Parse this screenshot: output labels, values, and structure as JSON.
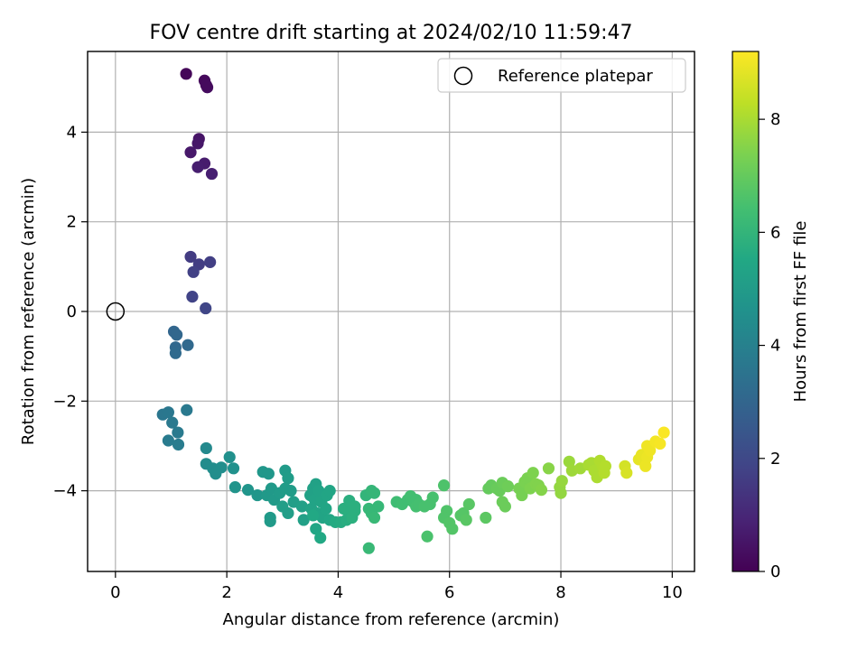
{
  "chart_data": {
    "type": "scatter",
    "title": "FOV centre drift starting at 2024/02/10 11:59:47",
    "xlabel": "Angular distance from reference (arcmin)",
    "ylabel": "Rotation from reference (arcmin)",
    "xlim": [
      -0.5,
      10.4
    ],
    "ylim": [
      -5.8,
      5.8
    ],
    "xticks": [
      "0",
      "2",
      "4",
      "6",
      "8",
      "10"
    ],
    "yticks": [
      "−4",
      "−2",
      "0",
      "2",
      "4"
    ],
    "grid": true,
    "legend": {
      "position": "top-right",
      "label": "Reference platepar"
    },
    "reference_point": {
      "x": 0,
      "y": 0
    },
    "colorbar": {
      "label": "Hours from first FF file",
      "range": [
        0,
        9.2
      ],
      "ticks": [
        "0",
        "2",
        "4",
        "6",
        "8"
      ],
      "colormap": "viridis"
    },
    "points": [
      [
        1.27,
        5.3,
        0.15
      ],
      [
        1.6,
        5.15,
        0.2
      ],
      [
        1.65,
        5.0,
        0.3
      ],
      [
        1.63,
        5.05,
        0.25
      ],
      [
        1.5,
        3.85,
        0.5
      ],
      [
        1.48,
        3.75,
        0.55
      ],
      [
        1.35,
        3.55,
        0.6
      ],
      [
        1.6,
        3.3,
        0.7
      ],
      [
        1.48,
        3.22,
        0.75
      ],
      [
        1.73,
        3.07,
        0.8
      ],
      [
        1.35,
        1.22,
        1.6
      ],
      [
        1.5,
        1.05,
        1.65
      ],
      [
        1.7,
        1.1,
        1.7
      ],
      [
        1.4,
        0.88,
        1.75
      ],
      [
        1.38,
        0.33,
        1.85
      ],
      [
        1.62,
        0.07,
        1.9
      ],
      [
        1.05,
        -0.45,
        3.0
      ],
      [
        1.1,
        -0.52,
        3.05
      ],
      [
        1.08,
        -0.8,
        3.1
      ],
      [
        1.3,
        -0.75,
        3.12
      ],
      [
        1.08,
        -0.93,
        3.15
      ],
      [
        0.85,
        -2.3,
        3.6
      ],
      [
        0.95,
        -2.25,
        3.65
      ],
      [
        1.28,
        -2.2,
        3.7
      ],
      [
        1.02,
        -2.48,
        3.72
      ],
      [
        1.12,
        -2.7,
        3.75
      ],
      [
        0.95,
        -2.88,
        3.8
      ],
      [
        1.13,
        -2.97,
        3.82
      ],
      [
        1.63,
        -3.05,
        4.3
      ],
      [
        1.63,
        -3.4,
        4.4
      ],
      [
        1.75,
        -3.5,
        4.45
      ],
      [
        1.9,
        -3.48,
        4.5
      ],
      [
        1.8,
        -3.62,
        4.5
      ],
      [
        2.05,
        -3.25,
        4.55
      ],
      [
        2.12,
        -3.5,
        4.6
      ],
      [
        2.15,
        -3.92,
        4.7
      ],
      [
        2.38,
        -3.98,
        4.75
      ],
      [
        2.55,
        -4.1,
        4.8
      ],
      [
        2.65,
        -3.58,
        4.85
      ],
      [
        2.75,
        -3.62,
        4.85
      ],
      [
        2.72,
        -4.1,
        4.9
      ],
      [
        2.8,
        -3.95,
        4.9
      ],
      [
        2.85,
        -4.2,
        4.95
      ],
      [
        2.78,
        -4.6,
        4.95
      ],
      [
        2.78,
        -4.68,
        4.95
      ],
      [
        2.95,
        -4.05,
        5.0
      ],
      [
        3.05,
        -3.55,
        5.0
      ],
      [
        3.1,
        -3.72,
        5.05
      ],
      [
        3.05,
        -3.95,
        5.05
      ],
      [
        3.15,
        -4.0,
        5.05
      ],
      [
        3.2,
        -4.25,
        5.1
      ],
      [
        3.1,
        -4.5,
        5.1
      ],
      [
        3.0,
        -4.35,
        5.1
      ],
      [
        3.35,
        -4.35,
        5.2
      ],
      [
        3.38,
        -4.65,
        5.2
      ],
      [
        3.5,
        -4.1,
        5.25
      ],
      [
        3.55,
        -3.95,
        5.25
      ],
      [
        3.6,
        -3.85,
        5.25
      ],
      [
        3.52,
        -4.4,
        5.3
      ],
      [
        3.58,
        -4.2,
        5.3
      ],
      [
        3.65,
        -4.0,
        5.3
      ],
      [
        3.7,
        -4.25,
        5.35
      ],
      [
        3.62,
        -4.5,
        5.35
      ],
      [
        3.72,
        -4.6,
        5.35
      ],
      [
        3.8,
        -4.1,
        5.4
      ],
      [
        3.85,
        -4.0,
        5.4
      ],
      [
        3.78,
        -4.4,
        5.4
      ],
      [
        3.85,
        -4.65,
        5.45
      ],
      [
        3.6,
        -4.85,
        5.45
      ],
      [
        3.68,
        -5.05,
        5.5
      ],
      [
        3.55,
        -4.55,
        5.5
      ],
      [
        3.95,
        -4.7,
        5.6
      ],
      [
        4.05,
        -4.7,
        5.65
      ],
      [
        4.15,
        -4.65,
        5.7
      ],
      [
        4.2,
        -4.55,
        5.7
      ],
      [
        4.1,
        -4.4,
        5.75
      ],
      [
        4.2,
        -4.22,
        5.75
      ],
      [
        4.25,
        -4.6,
        5.8
      ],
      [
        4.3,
        -4.45,
        5.8
      ],
      [
        4.3,
        -4.35,
        5.8
      ],
      [
        4.5,
        -4.1,
        6.0
      ],
      [
        4.6,
        -4.0,
        6.05
      ],
      [
        4.65,
        -4.05,
        6.05
      ],
      [
        4.55,
        -4.4,
        6.1
      ],
      [
        4.72,
        -4.35,
        6.1
      ],
      [
        4.6,
        -4.5,
        6.1
      ],
      [
        4.65,
        -4.6,
        6.15
      ],
      [
        4.55,
        -5.28,
        6.15
      ],
      [
        5.05,
        -4.25,
        6.3
      ],
      [
        5.15,
        -4.3,
        6.35
      ],
      [
        5.25,
        -4.2,
        6.35
      ],
      [
        5.3,
        -4.12,
        6.4
      ],
      [
        5.35,
        -4.25,
        6.4
      ],
      [
        5.4,
        -4.2,
        6.4
      ],
      [
        5.4,
        -4.35,
        6.45
      ],
      [
        5.45,
        -4.3,
        6.45
      ],
      [
        5.55,
        -4.35,
        6.5
      ],
      [
        5.65,
        -4.3,
        6.5
      ],
      [
        5.7,
        -4.15,
        6.5
      ],
      [
        5.6,
        -5.02,
        6.55
      ],
      [
        5.9,
        -3.88,
        6.6
      ],
      [
        5.95,
        -4.45,
        6.65
      ],
      [
        5.9,
        -4.6,
        6.65
      ],
      [
        6.0,
        -4.72,
        6.7
      ],
      [
        6.05,
        -4.85,
        6.7
      ],
      [
        6.2,
        -4.55,
        6.75
      ],
      [
        6.25,
        -4.5,
        6.75
      ],
      [
        6.3,
        -4.65,
        6.8
      ],
      [
        6.35,
        -4.3,
        6.8
      ],
      [
        6.65,
        -4.6,
        6.85
      ],
      [
        6.7,
        -3.95,
        7.0
      ],
      [
        6.75,
        -3.88,
        7.0
      ],
      [
        6.85,
        -3.95,
        7.05
      ],
      [
        6.9,
        -4.0,
        7.05
      ],
      [
        6.95,
        -3.82,
        7.1
      ],
      [
        6.95,
        -4.25,
        7.1
      ],
      [
        7.0,
        -4.35,
        7.1
      ],
      [
        7.05,
        -3.9,
        7.15
      ],
      [
        7.25,
        -3.95,
        7.3
      ],
      [
        7.3,
        -4.1,
        7.3
      ],
      [
        7.35,
        -3.8,
        7.35
      ],
      [
        7.4,
        -3.72,
        7.35
      ],
      [
        7.45,
        -3.95,
        7.4
      ],
      [
        7.5,
        -3.6,
        7.4
      ],
      [
        7.55,
        -3.85,
        7.45
      ],
      [
        7.6,
        -3.88,
        7.45
      ],
      [
        7.65,
        -3.98,
        7.5
      ],
      [
        7.78,
        -3.5,
        7.55
      ],
      [
        7.98,
        -3.92,
        7.7
      ],
      [
        8.0,
        -4.05,
        7.7
      ],
      [
        8.02,
        -3.78,
        7.75
      ],
      [
        8.15,
        -3.35,
        7.8
      ],
      [
        8.2,
        -3.55,
        7.85
      ],
      [
        8.35,
        -3.5,
        7.9
      ],
      [
        8.5,
        -3.42,
        8.0
      ],
      [
        8.55,
        -3.38,
        8.0
      ],
      [
        8.6,
        -3.55,
        8.05
      ],
      [
        8.65,
        -3.7,
        8.05
      ],
      [
        8.7,
        -3.33,
        8.1
      ],
      [
        8.75,
        -3.45,
        8.1
      ],
      [
        8.78,
        -3.6,
        8.15
      ],
      [
        8.8,
        -3.45,
        8.15
      ],
      [
        9.15,
        -3.45,
        8.6
      ],
      [
        9.18,
        -3.6,
        8.65
      ],
      [
        9.4,
        -3.3,
        8.85
      ],
      [
        9.45,
        -3.2,
        8.9
      ],
      [
        9.5,
        -3.35,
        8.9
      ],
      [
        9.52,
        -3.45,
        8.95
      ],
      [
        9.55,
        -3.25,
        8.95
      ],
      [
        9.55,
        -3.0,
        9.0
      ],
      [
        9.6,
        -3.1,
        9.0
      ],
      [
        9.7,
        -2.9,
        9.05
      ],
      [
        9.78,
        -2.95,
        9.1
      ],
      [
        9.85,
        -2.7,
        9.15
      ]
    ]
  }
}
